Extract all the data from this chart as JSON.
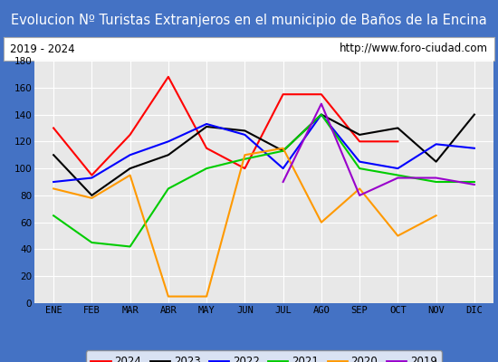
{
  "title": "Evolucion Nº Turistas Extranjeros en el municipio de Baños de la Encina",
  "subtitle_left": "2019 - 2024",
  "subtitle_right": "http://www.foro-ciudad.com",
  "months": [
    "ENE",
    "FEB",
    "MAR",
    "ABR",
    "MAY",
    "JUN",
    "JUL",
    "AGO",
    "SEP",
    "OCT",
    "NOV",
    "DIC"
  ],
  "ylim": [
    0,
    180
  ],
  "yticks": [
    0,
    20,
    40,
    60,
    80,
    100,
    120,
    140,
    160,
    180
  ],
  "series": {
    "2024": {
      "color": "#ff0000",
      "values": [
        130,
        95,
        125,
        168,
        115,
        100,
        155,
        155,
        120,
        120,
        null,
        null
      ]
    },
    "2023": {
      "color": "#000000",
      "values": [
        110,
        80,
        100,
        110,
        131,
        128,
        113,
        140,
        125,
        130,
        105,
        140
      ]
    },
    "2022": {
      "color": "#0000ff",
      "values": [
        90,
        93,
        110,
        120,
        133,
        125,
        100,
        140,
        105,
        100,
        118,
        115
      ]
    },
    "2021": {
      "color": "#00cc00",
      "values": [
        65,
        45,
        42,
        85,
        100,
        107,
        113,
        140,
        100,
        95,
        90,
        90
      ]
    },
    "2020": {
      "color": "#ff9900",
      "values": [
        85,
        78,
        95,
        5,
        5,
        110,
        115,
        60,
        85,
        50,
        65,
        null
      ]
    },
    "2019": {
      "color": "#9900cc",
      "values": [
        null,
        null,
        null,
        null,
        null,
        null,
        90,
        148,
        80,
        93,
        93,
        88
      ]
    }
  },
  "title_bg_color": "#4472c4",
  "title_text_color": "#ffffff",
  "plot_bg_color": "#e8e8e8",
  "outer_bg_color": "#dce6f1",
  "grid_color": "#ffffff",
  "border_color": "#4472c4",
  "title_fontsize": 10.5,
  "subtitle_fontsize": 8.5,
  "tick_fontsize": 7.5,
  "legend_fontsize": 8.5
}
